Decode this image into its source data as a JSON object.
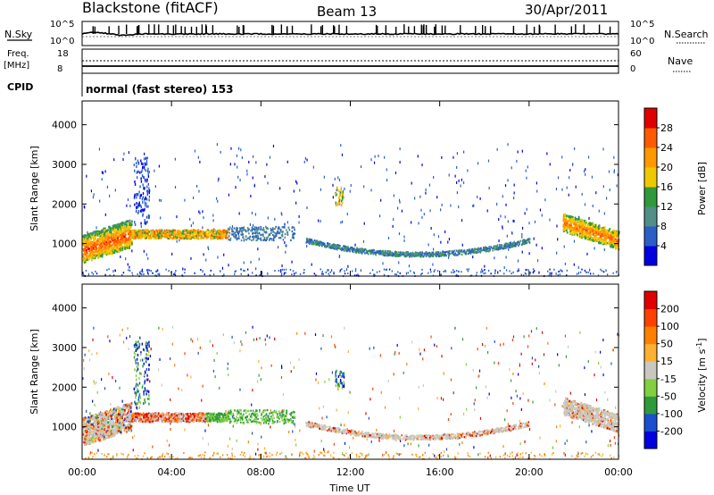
{
  "header": {
    "station": "Blackstone (fitACF)",
    "beam": "Beam 13",
    "date": "30/Apr/2011"
  },
  "top_panels": {
    "nsky_label": "N.Sky",
    "nsky_ticks": [
      "10^5",
      "10^0"
    ],
    "nsearch_label": "N.Search",
    "nsearch_ticks": [
      "10^5",
      "10^0"
    ],
    "freq_label_line1": "Freq.",
    "freq_label_line2": "[MHz]",
    "freq_ticks": [
      "18",
      "8"
    ],
    "nave_label": "Nave",
    "nave_ticks": [
      "60",
      "0"
    ],
    "cpid_label": "CPID",
    "cpid_value": "normal (fast stereo) 153"
  },
  "chart_data": [
    {
      "type": "heatmap",
      "name": "power",
      "ylabel": "Slant Range [km]",
      "xlabel": "",
      "x_ticks": [
        "00:00",
        "04:00",
        "08:00",
        "12:00",
        "16:00",
        "20:00",
        "00:00"
      ],
      "x_hours": [
        0,
        4,
        8,
        12,
        16,
        20,
        24
      ],
      "xlim": [
        0,
        24
      ],
      "y_ticks": [
        1000,
        2000,
        3000,
        4000
      ],
      "ylim": [
        180,
        4600
      ],
      "colorbar": {
        "label": "Power [dB]",
        "ticks": [
          4,
          8,
          12,
          16,
          20,
          24,
          28
        ],
        "range": [
          0,
          32
        ],
        "colors": [
          "#0000e0",
          "#2a5fc8",
          "#4f8f87",
          "#2e9a3a",
          "#f0c800",
          "#ff9900",
          "#ff5a00",
          "#e00000"
        ]
      },
      "features": [
        {
          "region": "dense band",
          "t_start": 0.0,
          "t_end": 2.2,
          "range_km": [
            650,
            1300
          ],
          "level_db": 26
        },
        {
          "region": "mid band",
          "t_start": 2.2,
          "t_end": 6.5,
          "range_km": [
            1150,
            1350
          ],
          "level_db": 22
        },
        {
          "region": "arc",
          "t_start": 10.0,
          "t_end": 20.0,
          "range_km": [
            700,
            1000
          ],
          "level_db": 10
        },
        {
          "region": "dusk band",
          "t_start": 21.5,
          "t_end": 24.0,
          "range_km": [
            1000,
            1600
          ],
          "level_db": 24
        }
      ]
    },
    {
      "type": "heatmap",
      "name": "velocity",
      "ylabel": "Slant Range [km]",
      "xlabel": "Time UT",
      "x_ticks": [
        "00:00",
        "04:00",
        "08:00",
        "12:00",
        "16:00",
        "20:00",
        "00:00"
      ],
      "x_hours": [
        0,
        4,
        8,
        12,
        16,
        20,
        24
      ],
      "xlim": [
        0,
        24
      ],
      "y_ticks": [
        1000,
        2000,
        3000,
        4000
      ],
      "ylim": [
        180,
        4600
      ],
      "colorbar": {
        "label": "Velocity [m s",
        "label_sup": "-1",
        "label_end": "]",
        "ticks": [
          "200",
          "100",
          "50",
          "15",
          "-15",
          "-50",
          "-100",
          "-200"
        ],
        "range": [
          -250,
          250
        ],
        "colors": [
          "#0000e0",
          "#1a4fd0",
          "#2e9a3a",
          "#80d040",
          "#c8c8c0",
          "#ffb030",
          "#ff8000",
          "#ff4000",
          "#e00000"
        ]
      }
    }
  ]
}
